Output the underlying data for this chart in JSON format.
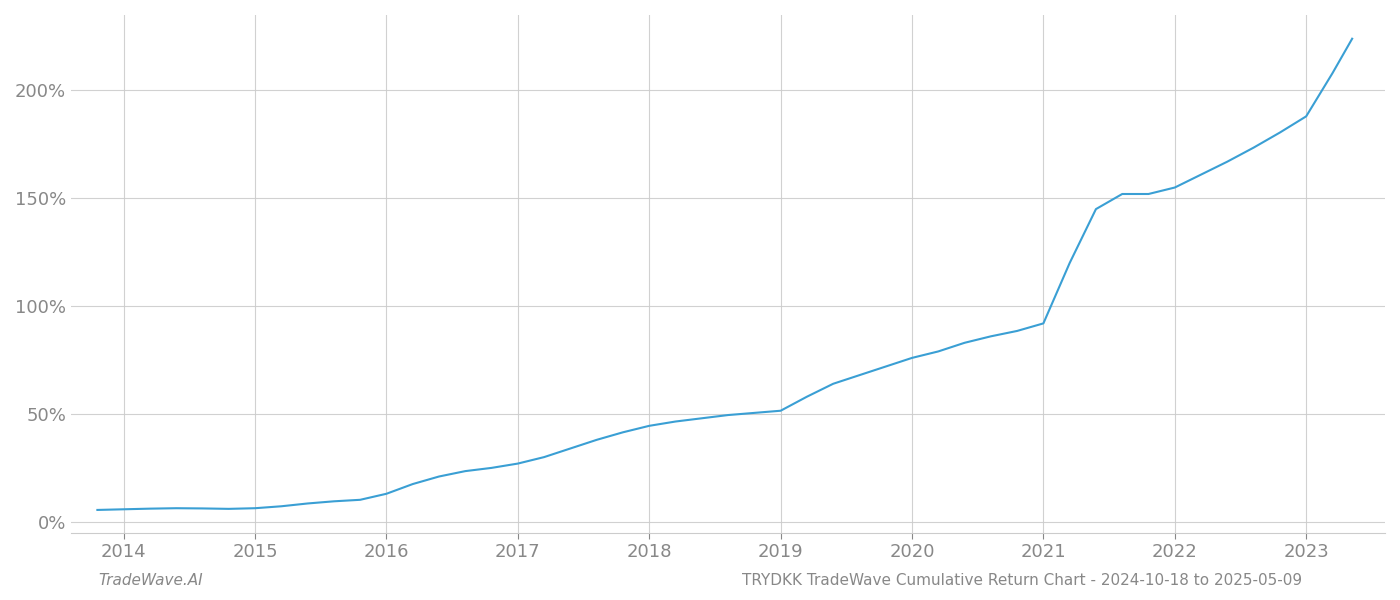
{
  "title": "",
  "footer_left": "TradeWave.AI",
  "footer_right": "TRYDKK TradeWave Cumulative Return Chart - 2024-10-18 to 2025-05-09",
  "line_color": "#3a9fd4",
  "background_color": "#ffffff",
  "grid_color": "#cccccc",
  "x_tick_color": "#888888",
  "y_tick_color": "#888888",
  "x_ticks": [
    2014,
    2015,
    2016,
    2017,
    2018,
    2019,
    2020,
    2021,
    2022,
    2023
  ],
  "y_ticks": [
    0,
    50,
    100,
    150,
    200
  ],
  "xlim": [
    2013.6,
    2023.6
  ],
  "ylim": [
    -5,
    235
  ],
  "x_data": [
    2013.8,
    2014.0,
    2014.2,
    2014.4,
    2014.6,
    2014.8,
    2015.0,
    2015.2,
    2015.4,
    2015.6,
    2015.8,
    2016.0,
    2016.2,
    2016.4,
    2016.6,
    2016.8,
    2017.0,
    2017.2,
    2017.4,
    2017.6,
    2017.8,
    2018.0,
    2018.2,
    2018.4,
    2018.6,
    2018.8,
    2019.0,
    2019.2,
    2019.4,
    2019.6,
    2019.8,
    2020.0,
    2020.2,
    2020.4,
    2020.6,
    2020.8,
    2021.0,
    2021.2,
    2021.4,
    2021.6,
    2021.8,
    2022.0,
    2022.2,
    2022.4,
    2022.6,
    2022.8,
    2023.0,
    2023.2,
    2023.35
  ],
  "y_data": [
    5.5,
    5.8,
    6.1,
    6.3,
    6.2,
    6.0,
    6.3,
    7.2,
    8.5,
    9.5,
    10.2,
    13.0,
    17.5,
    21.0,
    23.5,
    25.0,
    27.0,
    30.0,
    34.0,
    38.0,
    41.5,
    44.5,
    46.5,
    48.0,
    49.5,
    50.5,
    51.5,
    58.0,
    64.0,
    68.0,
    72.0,
    76.0,
    79.0,
    83.0,
    86.0,
    88.5,
    92.0,
    120.0,
    145.0,
    152.0,
    152.0,
    155.0,
    161.0,
    167.0,
    173.5,
    180.5,
    188.0,
    208.0,
    224.0
  ],
  "line_width": 1.5,
  "tick_fontsize": 13,
  "footer_fontsize": 11
}
